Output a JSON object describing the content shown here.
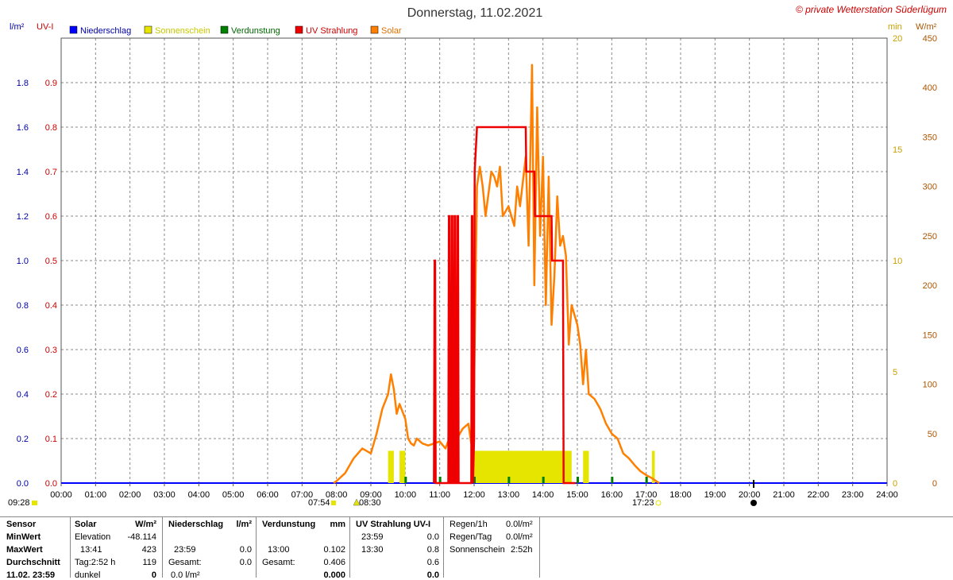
{
  "title": "Donnerstag, 11.02.2021",
  "copyright": "© private Wetterstation Süderlügum",
  "colors": {
    "niederschlag": "#0000ff",
    "sonnenschein": "#e5e500",
    "verdunstung": "#008000",
    "uv": "#ee0000",
    "solar": "#ff8000",
    "grid": "#888888"
  },
  "chart_data": {
    "type": "line",
    "left_axis_unit_1": "l/m²",
    "left_axis_unit_2": "UV-I",
    "right_axis_unit_1": "min",
    "right_axis_unit_2": "W/m²",
    "legend": [
      {
        "name": "Niederschlag",
        "color": "#0000ff"
      },
      {
        "name": "Sonnenschein",
        "color": "#e5e500"
      },
      {
        "name": "Verdunstung",
        "color": "#008000"
      },
      {
        "name": "UV Strahlung",
        "color": "#ee0000"
      },
      {
        "name": "Solar",
        "color": "#ff8000"
      }
    ],
    "x_ticks": [
      "00:00",
      "01:00",
      "02:00",
      "03:00",
      "04:00",
      "05:00",
      "06:00",
      "07:00",
      "08:00",
      "09:00",
      "10:00",
      "11:00",
      "12:00",
      "13:00",
      "14:00",
      "15:00",
      "16:00",
      "17:00",
      "18:00",
      "19:00",
      "20:00",
      "21:00",
      "22:00",
      "23:00",
      "24:00"
    ],
    "y_left_precip_ticks": [
      "0.0",
      "0.2",
      "0.4",
      "0.6",
      "0.8",
      "1.0",
      "1.2",
      "1.4",
      "1.6",
      "1.8"
    ],
    "y_left_uv_ticks": [
      "0.0",
      "0.1",
      "0.2",
      "0.3",
      "0.4",
      "0.5",
      "0.6",
      "0.7",
      "0.8",
      "0.9"
    ],
    "y_right_min_ticks": [
      "0",
      "5",
      "10",
      "15",
      "20"
    ],
    "y_right_solar_ticks": [
      "0",
      "50",
      "100",
      "150",
      "200",
      "250",
      "300",
      "350",
      "400",
      "450"
    ],
    "ylim_uv": [
      0,
      1.0
    ],
    "ylim_solar": [
      0,
      450
    ],
    "ylim_minutes": [
      0,
      20
    ],
    "grid": true,
    "solar": {
      "name": "Solar",
      "x": [
        "07:55",
        "08:00",
        "08:15",
        "08:30",
        "08:45",
        "09:00",
        "09:10",
        "09:20",
        "09:30",
        "09:35",
        "09:40",
        "09:45",
        "09:50",
        "10:00",
        "10:05",
        "10:10",
        "10:15",
        "10:20",
        "10:30",
        "10:40",
        "10:50",
        "11:00",
        "11:10",
        "11:20",
        "11:30",
        "11:40",
        "11:50",
        "11:55",
        "12:00",
        "12:05",
        "12:10",
        "12:15",
        "12:20",
        "12:30",
        "12:35",
        "12:40",
        "12:45",
        "12:50",
        "13:00",
        "13:10",
        "13:15",
        "13:20",
        "13:30",
        "13:35",
        "13:40",
        "13:41",
        "13:45",
        "13:50",
        "13:55",
        "14:00",
        "14:05",
        "14:10",
        "14:15",
        "14:20",
        "14:25",
        "14:30",
        "14:35",
        "14:40",
        "14:45",
        "14:50",
        "15:00",
        "15:05",
        "15:10",
        "15:15",
        "15:20",
        "15:30",
        "15:40",
        "15:50",
        "16:00",
        "16:10",
        "16:20",
        "16:30",
        "16:40",
        "16:50",
        "17:00",
        "17:10",
        "17:15",
        "17:20",
        "17:23"
      ],
      "values": [
        0,
        2,
        10,
        25,
        35,
        30,
        50,
        75,
        90,
        110,
        95,
        70,
        80,
        65,
        45,
        40,
        38,
        45,
        40,
        38,
        40,
        42,
        35,
        50,
        45,
        55,
        60,
        40,
        100,
        300,
        320,
        300,
        270,
        315,
        310,
        300,
        320,
        270,
        280,
        260,
        300,
        280,
        330,
        240,
        390,
        423,
        200,
        380,
        250,
        330,
        180,
        310,
        160,
        210,
        290,
        240,
        250,
        230,
        140,
        180,
        160,
        140,
        100,
        135,
        90,
        85,
        75,
        60,
        50,
        45,
        30,
        25,
        18,
        12,
        8,
        5,
        3,
        1,
        0
      ]
    },
    "uv": {
      "name": "UV Strahlung",
      "x": [
        "10:50",
        "10:51",
        "10:52",
        "10:53",
        "11:15",
        "11:16",
        "11:17",
        "11:18",
        "11:20",
        "11:21",
        "11:22",
        "11:23",
        "11:25",
        "11:26",
        "11:27",
        "11:28",
        "11:30",
        "11:31",
        "11:32",
        "11:33",
        "11:55",
        "11:56",
        "11:57",
        "11:58",
        "12:00",
        "12:01",
        "12:05",
        "13:30",
        "13:31",
        "13:45",
        "13:46",
        "14:15",
        "14:16",
        "14:35",
        "14:36",
        "14:55",
        "14:56",
        "14:57"
      ],
      "values": [
        0,
        0.5,
        0.5,
        0,
        0,
        0.6,
        0.6,
        0,
        0,
        0.6,
        0.6,
        0,
        0,
        0.6,
        0.6,
        0,
        0,
        0.6,
        0.6,
        0,
        0,
        0.6,
        0.6,
        0,
        0.1,
        0.7,
        0.8,
        0.8,
        0.7,
        0.7,
        0.6,
        0.6,
        0.5,
        0.5,
        0,
        0,
        0,
        0
      ]
    },
    "sunshine_blocks_minutes": [
      {
        "from": "09:30",
        "to": "09:40",
        "minutes": 1
      },
      {
        "from": "09:50",
        "to": "10:00",
        "minutes": 1
      },
      {
        "from": "12:00",
        "to": "14:50",
        "minutes": 1
      },
      {
        "from": "15:10",
        "to": "15:20",
        "minutes": 1
      },
      {
        "from": "17:10",
        "to": "17:15",
        "minutes": 1
      }
    ],
    "verdunstung_ticks_minutes": [
      "10:00",
      "11:00",
      "12:00",
      "13:00",
      "14:00",
      "15:00",
      "16:00",
      "17:00"
    ]
  },
  "markers": {
    "left_time": "09:28",
    "sunrise": "07:54",
    "mid_time": "08:30",
    "sunset": "17:23"
  },
  "stats": {
    "headers": [
      "Sensor",
      "Solar",
      "W/m²",
      "Niederschlag",
      "l/m²",
      "Verdunstung",
      "mm",
      "UV Strahlung UV-I"
    ],
    "row_labels": [
      "MinWert",
      "MaxWert",
      "Durchschnitt",
      "11.02. 23:59"
    ],
    "solar": {
      "r1_label": "Elevation",
      "r1_value": "-48.114",
      "r2_label": "13:41",
      "r2_value": "423",
      "r3_label": "Tag:2:52 h",
      "r3_value": "119",
      "r4_label": "dunkel",
      "r4_value": "0"
    },
    "niederschlag": {
      "r1_label": "",
      "r1_value": "",
      "r2_label": "23:59",
      "r2_value": "0.0",
      "r3_label": "Gesamt:",
      "r3_value": "0.0",
      "r4_label": "0.0 l/m²",
      "r4_value": ""
    },
    "verdunstung": {
      "r1_label": "",
      "r1_value": "",
      "r2_label": "13:00",
      "r2_value": "0.102",
      "r3_label": "Gesamt:",
      "r3_value": "0.406",
      "r4_label": "",
      "r4_value": "0.000"
    },
    "uv": {
      "r1_label": "23:59",
      "r1_value": "0.0",
      "r2_label": "13:30",
      "r2_value": "0.8",
      "r3_label": "",
      "r3_value": "0.6",
      "r4_label": "",
      "r4_value": "0.0"
    },
    "regen": {
      "l1": "Regen/1h",
      "v1": "0.0l/m²",
      "l2": "Regen/Tag",
      "v2": "0.0l/m²",
      "l3": "Sonnenschein",
      "v3": "2:52h"
    }
  }
}
